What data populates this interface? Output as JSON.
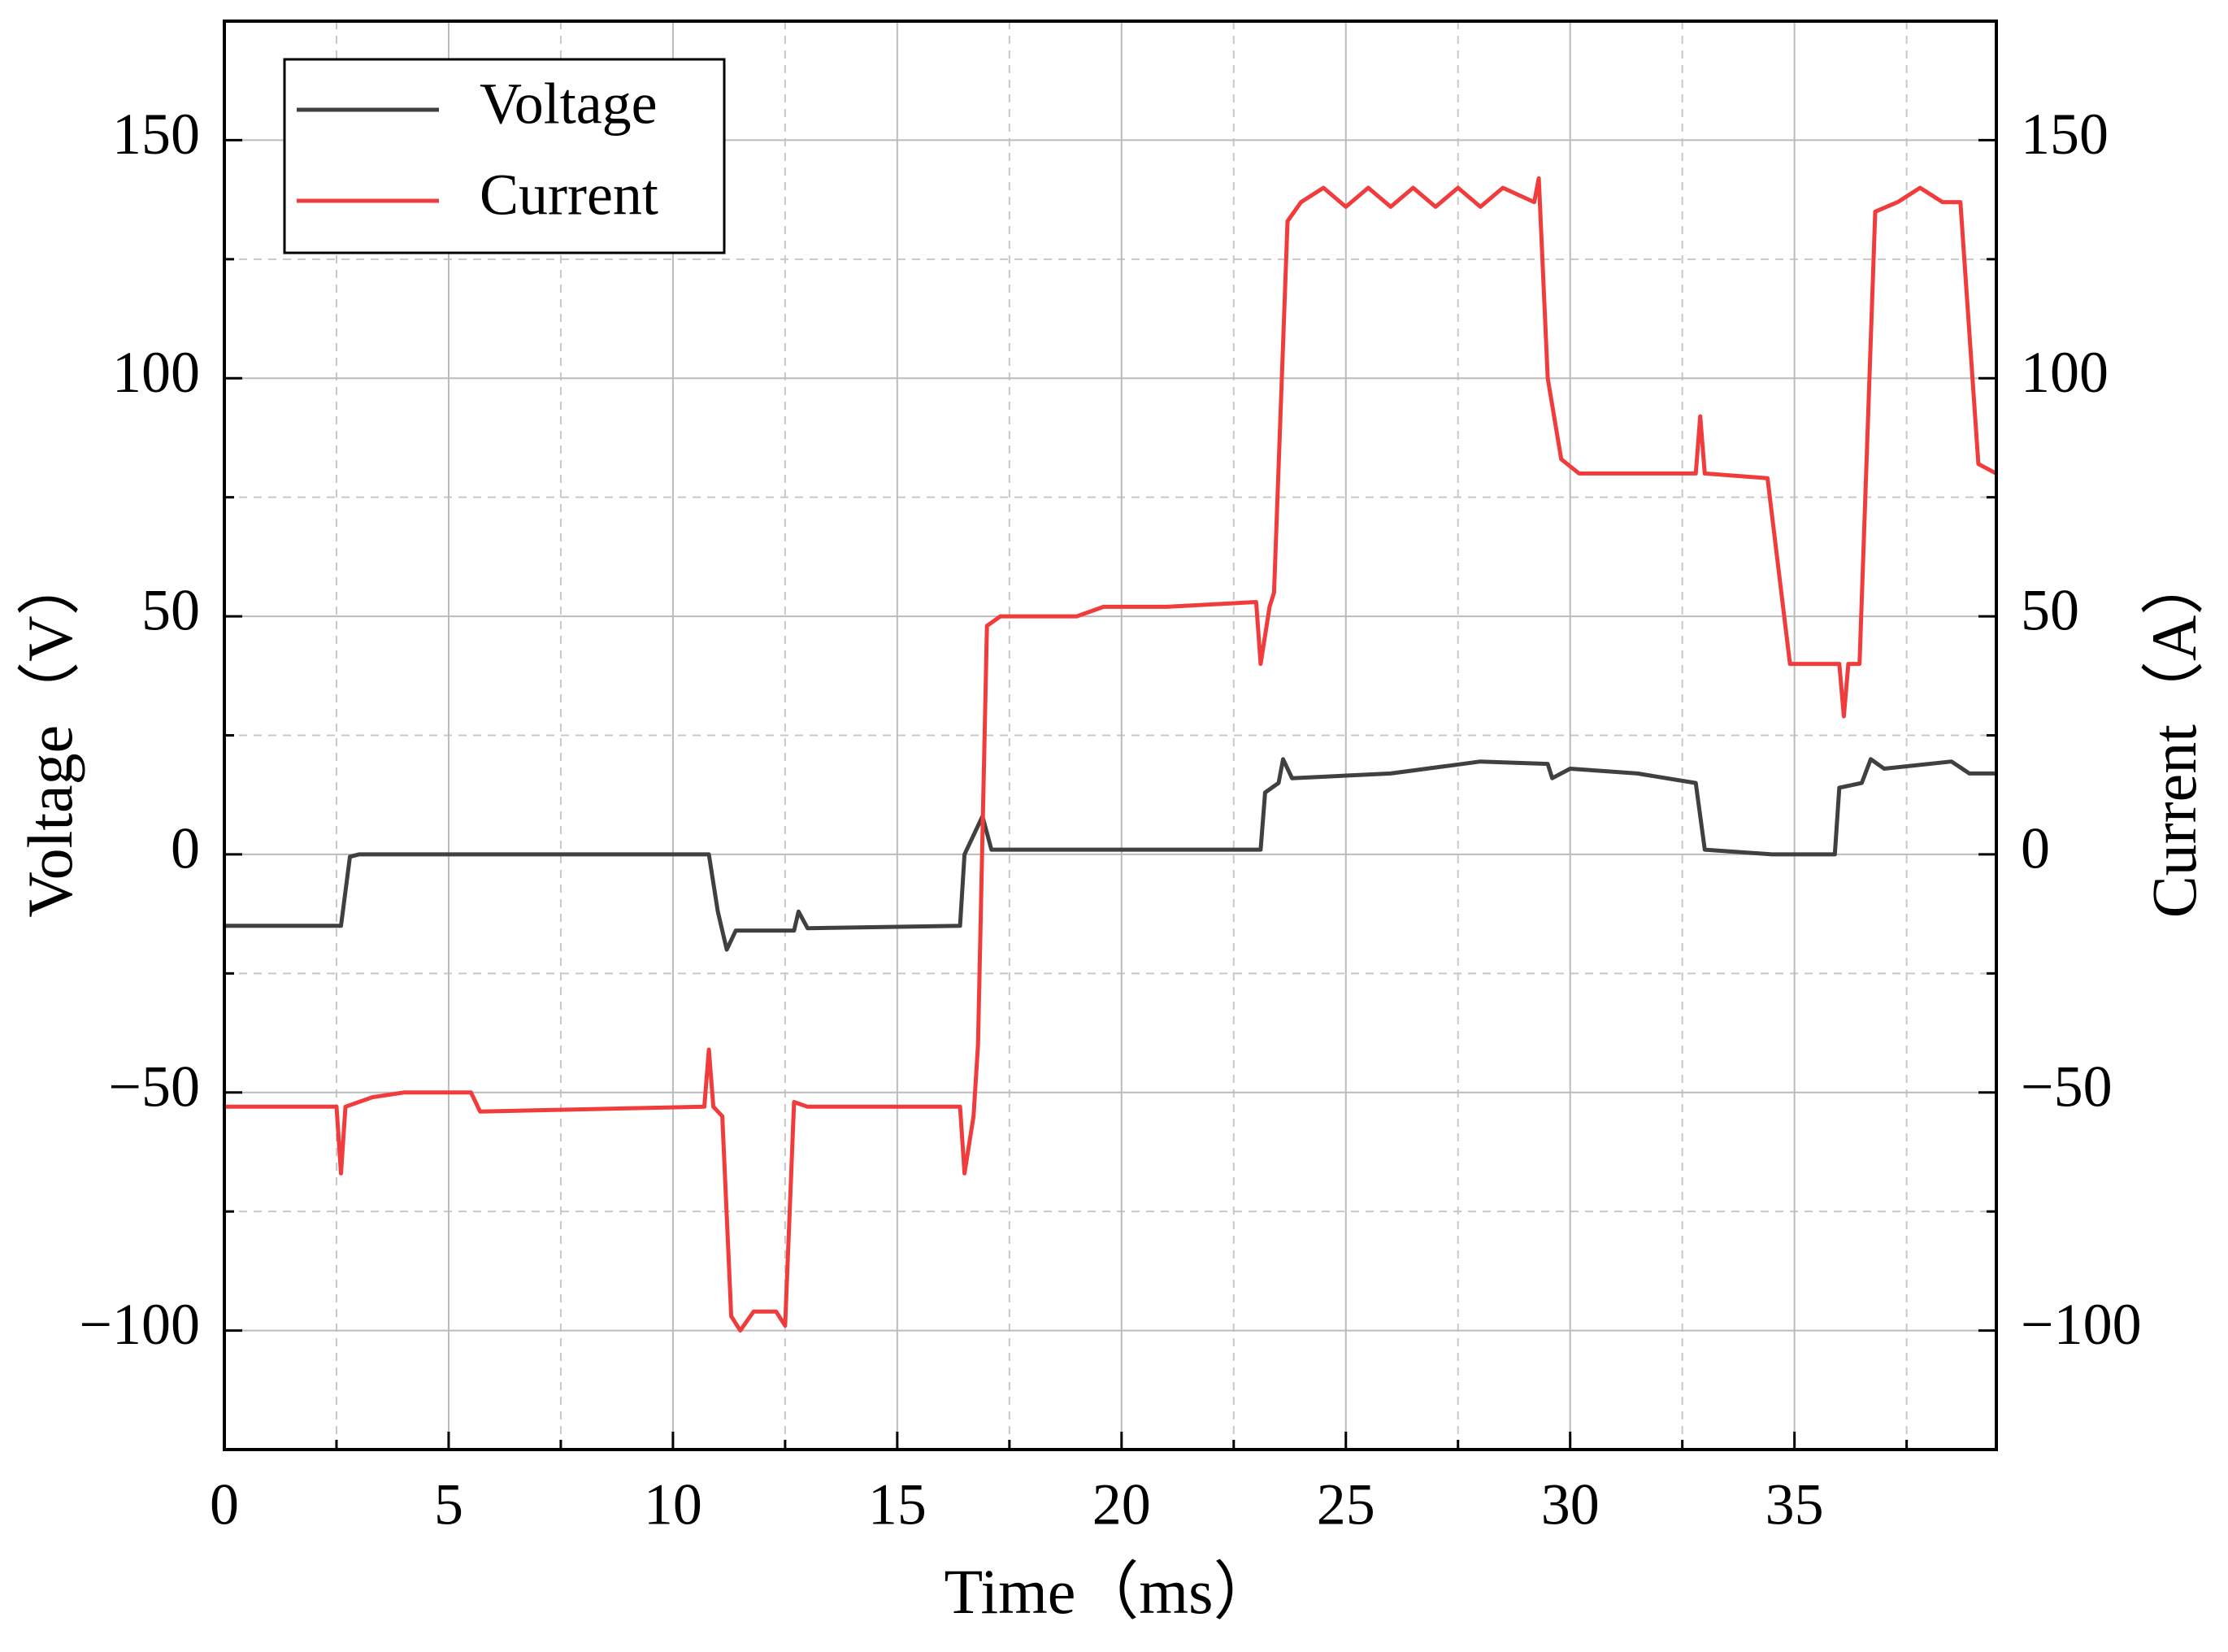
{
  "chart_data": {
    "type": "line",
    "xlabel": "Time（ms）",
    "ylabel": "Voltage（V）",
    "y2label": "Current（A）",
    "xlim": [
      0,
      39.5
    ],
    "xticks": [
      0,
      5,
      10,
      15,
      20,
      25,
      30,
      35
    ],
    "ylim": [
      -125,
      175
    ],
    "yticks": [
      {
        "value": -100,
        "label": "−100"
      },
      {
        "value": -50,
        "label": "−50"
      },
      0,
      50,
      100,
      150
    ],
    "y2lim": [
      -125,
      175
    ],
    "y2ticks": [
      {
        "value": -100,
        "label": "−100"
      },
      {
        "value": -50,
        "label": "−50"
      },
      0,
      50,
      100,
      150
    ],
    "grid": true,
    "legend": "upper left",
    "series": [
      {
        "name": "Voltage",
        "color": "#404040",
        "x": [
          0,
          2.6,
          2.8,
          3,
          10.8,
          11.0,
          11.2,
          11.4,
          12.7,
          12.8,
          13,
          16.4,
          16.5,
          16.9,
          17.1,
          23.1,
          23.2,
          23.5,
          23.6,
          23.8,
          26,
          28,
          29.5,
          29.6,
          30,
          31.5,
          32.8,
          33.0,
          34.5,
          35.9,
          36.0,
          36.5,
          36.7,
          37,
          38.5,
          38.9,
          39.5
        ],
        "values": [
          -15,
          -15,
          -0.5,
          0,
          0,
          -12,
          -20,
          -16,
          -16,
          -12,
          -15.5,
          -15,
          0,
          8,
          1,
          1,
          13,
          15,
          20,
          16,
          17,
          19.5,
          19,
          16,
          18,
          17,
          15,
          1,
          0,
          0,
          14,
          15,
          20,
          18,
          19.5,
          17,
          17
        ]
      },
      {
        "name": "Current",
        "color": "#f03c3c",
        "axis": "y2",
        "x": [
          0,
          2.5,
          2.6,
          2.7,
          3.3,
          4,
          5.5,
          5.7,
          10.7,
          10.8,
          10.9,
          11.1,
          11.3,
          11.5,
          11.8,
          12.3,
          12.5,
          12.7,
          13,
          16.4,
          16.5,
          16.7,
          16.8,
          17.0,
          17.3,
          19,
          19.6,
          21,
          23,
          23.1,
          23.3,
          23.4,
          23.7,
          24,
          24.5,
          25,
          25.5,
          26,
          26.5,
          27,
          27.5,
          28,
          28.5,
          29.2,
          29.3,
          29.5,
          29.8,
          30.2,
          32.8,
          32.9,
          33.0,
          34.4,
          34.9,
          35.2,
          36,
          36.1,
          36.2,
          36.45,
          36.8,
          37.3,
          37.8,
          38.3,
          38.7,
          39.1,
          39.5
        ],
        "values": [
          -53,
          -53,
          -67,
          -53,
          -51,
          -50,
          -50,
          -54,
          -53,
          -41,
          -53,
          -55,
          -97,
          -100,
          -96,
          -96,
          -99,
          -52,
          -53,
          -53,
          -67,
          -55,
          -40,
          48,
          50,
          50,
          52,
          52,
          53,
          40,
          52,
          55,
          133,
          137,
          140,
          136,
          140,
          136,
          140,
          136,
          140,
          136,
          140,
          137,
          142,
          100,
          83,
          80,
          80,
          92,
          80,
          79,
          40,
          40,
          40,
          29,
          40,
          40,
          135,
          137,
          140,
          137,
          137,
          82,
          80
        ]
      }
    ]
  }
}
